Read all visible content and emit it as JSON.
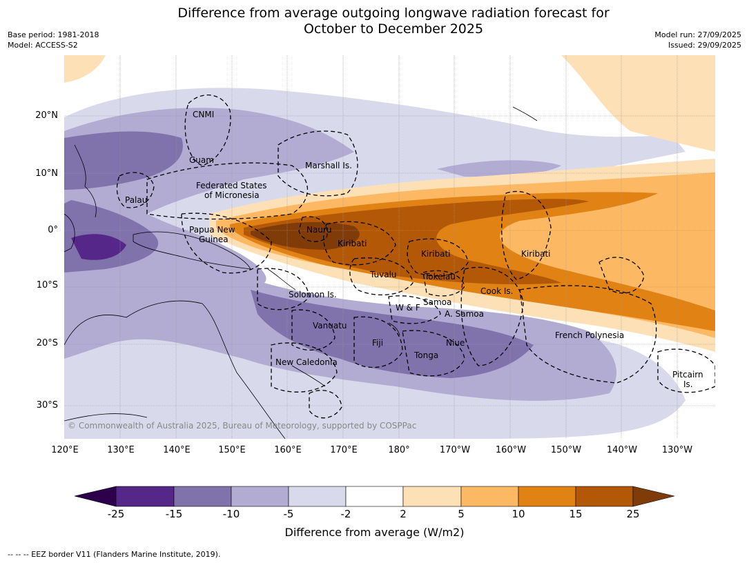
{
  "title": {
    "line1": "Difference from average outgoing longwave radiation forecast for",
    "line2": "October to December 2025"
  },
  "meta": {
    "base_period": "Base period: 1981-2018",
    "model": "Model: ACCESS-S2",
    "model_run": "Model run: 27/09/2025",
    "issued": "Issued: 29/09/2025"
  },
  "axes": {
    "lat_labels": [
      "20°N",
      "10°N",
      "0°",
      "10°S",
      "20°S",
      "30°S"
    ],
    "lon_labels": [
      "120°E",
      "130°E",
      "140°E",
      "150°E",
      "160°E",
      "170°E",
      "180°",
      "170°W",
      "160°W",
      "150°W",
      "140°W",
      "130°W"
    ]
  },
  "regions": [
    "CNMI",
    "Guam",
    "Marshall Is.",
    "Federated States",
    "of Micronesia",
    "Palau",
    "Papua New",
    "Guinea",
    "Nauru",
    "Kiribati",
    "Kiribati",
    "Kiribati",
    "Tuvalu",
    "Tokelau",
    "Cook Is.",
    "Solomon Is.",
    "W & F",
    "Samoa",
    "A. Samoa",
    "Vanuatu",
    "Fiji",
    "Niue",
    "Tonga",
    "New Caledonia",
    "French Polynesia",
    "Pitcairn",
    "Is."
  ],
  "copyright": "© Commonwealth of Australia 2025, Bureau of Meteorology, supported by COSPPac",
  "colorbar": {
    "title": "Difference from average (W/m2)",
    "ticks": [
      "-25",
      "-15",
      "-10",
      "-5",
      "-2",
      "2",
      "5",
      "10",
      "15",
      "25"
    ],
    "colors": {
      "below_min": "#2d004b",
      "n25_n15": "#542788",
      "n15_n10": "#8073ac",
      "n10_n5": "#b2abd2",
      "n5_n2": "#d8daeb",
      "n2_p2": "#ffffff",
      "p2_p5": "#fee0b6",
      "p5_p10": "#fdb863",
      "p10_p15": "#e08214",
      "p15_p25": "#b35806",
      "above_max": "#7f3b08"
    }
  },
  "footer": "--  --  -- EEZ border V11 (Flanders Marine Institute, 2019)."
}
